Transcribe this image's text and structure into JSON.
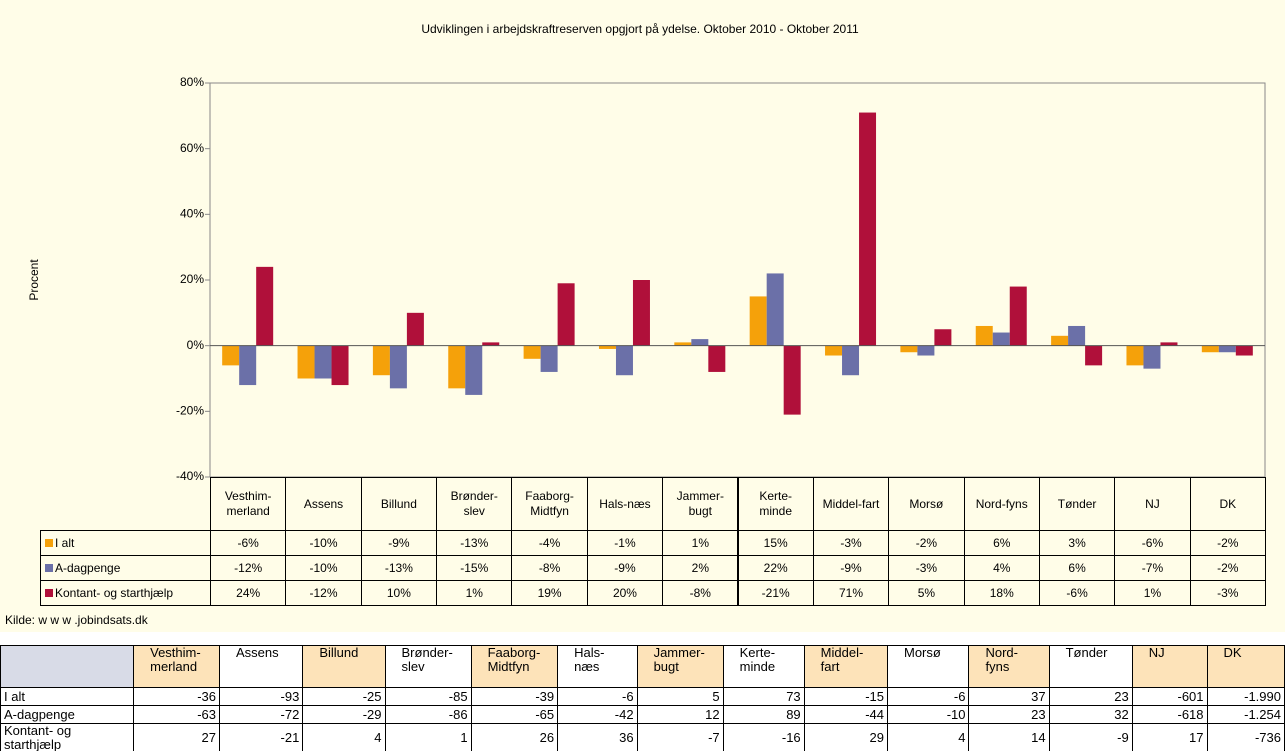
{
  "chart_data": {
    "type": "bar",
    "title": "Udviklingen i arbejdskraftreserven opgjort på ydelse. Oktober 2010 - Oktober 2011",
    "y_label": "Procent",
    "categories": [
      "Vesthim-\nmerland",
      "Assens",
      "Billund",
      "Brønder-\nslev",
      "Faaborg-\nMidtfyn",
      "Hals-næs",
      "Jammer-\nbugt",
      "Kerte-\nminde",
      "Middel-fart",
      "Morsø",
      "Nord-fyns",
      "Tønder",
      "NJ",
      "DK"
    ],
    "series": [
      {
        "name": "I alt",
        "color": "#f5a10a",
        "values": [
          -6,
          -10,
          -9,
          -13,
          -4,
          -1,
          1,
          15,
          -3,
          -2,
          6,
          3,
          -6,
          -2
        ],
        "value_labels": [
          "-6%",
          "-10%",
          "-9%",
          "-13%",
          "-4%",
          "-1%",
          "1%",
          "15%",
          "-3%",
          "-2%",
          "6%",
          "3%",
          "-6%",
          "-2%"
        ]
      },
      {
        "name": "A-dagpenge",
        "color": "#6b70a8",
        "values": [
          -12,
          -10,
          -13,
          -15,
          -8,
          -9,
          2,
          22,
          -9,
          -3,
          4,
          6,
          -7,
          -2
        ],
        "value_labels": [
          "-12%",
          "-10%",
          "-13%",
          "-15%",
          "-8%",
          "-9%",
          "2%",
          "22%",
          "-9%",
          "-3%",
          "4%",
          "6%",
          "-7%",
          "-2%"
        ]
      },
      {
        "name": "Kontant- og starthjælp",
        "color": "#b0103a",
        "values": [
          24,
          -12,
          10,
          1,
          19,
          20,
          -8,
          -21,
          71,
          5,
          18,
          -6,
          1,
          -3
        ],
        "value_labels": [
          "24%",
          "-12%",
          "10%",
          "1%",
          "19%",
          "20%",
          "-8%",
          "-21%",
          "71%",
          "5%",
          "18%",
          "-6%",
          "1%",
          "-3%"
        ]
      }
    ],
    "ylim": [
      -40,
      80
    ],
    "yticks": [
      {
        "value": -40,
        "label": "-40%"
      },
      {
        "value": -20,
        "label": "-20%"
      },
      {
        "value": 0,
        "label": "0%"
      },
      {
        "value": 20,
        "label": "20%"
      },
      {
        "value": 40,
        "label": "40%"
      },
      {
        "value": 60,
        "label": "60%"
      },
      {
        "value": 80,
        "label": "80%"
      }
    ],
    "grid": false,
    "source": "Kilde: w w w .jobindsats.dk"
  },
  "table": {
    "header": [
      "Vesthim-\nmerland",
      "Assens",
      "Billund",
      "Brønder-\nslev",
      "Faaborg-\nMidtfyn",
      "Hals-\nnæs",
      "Jammer-\nbugt",
      "Kerte-\nminde",
      "Middel-\nfart",
      "Morsø",
      "Nord-\nfyns",
      "Tønder",
      "NJ",
      "DK"
    ],
    "rows": [
      [
        "I alt",
        "-36",
        "-93",
        "-25",
        "-85",
        "-39",
        "-6",
        "5",
        "73",
        "-15",
        "-6",
        "37",
        "23",
        "-601",
        "-1.990"
      ],
      [
        "A-dagpenge",
        "-63",
        "-72",
        "-29",
        "-86",
        "-65",
        "-42",
        "12",
        "89",
        "-44",
        "-10",
        "23",
        "32",
        "-618",
        "-1.254"
      ],
      [
        "Kontant- og starthjælp",
        "27",
        "-21",
        "4",
        "1",
        "26",
        "36",
        "-7",
        "-16",
        "29",
        "4",
        "14",
        "-9",
        "17",
        "-736"
      ]
    ]
  }
}
